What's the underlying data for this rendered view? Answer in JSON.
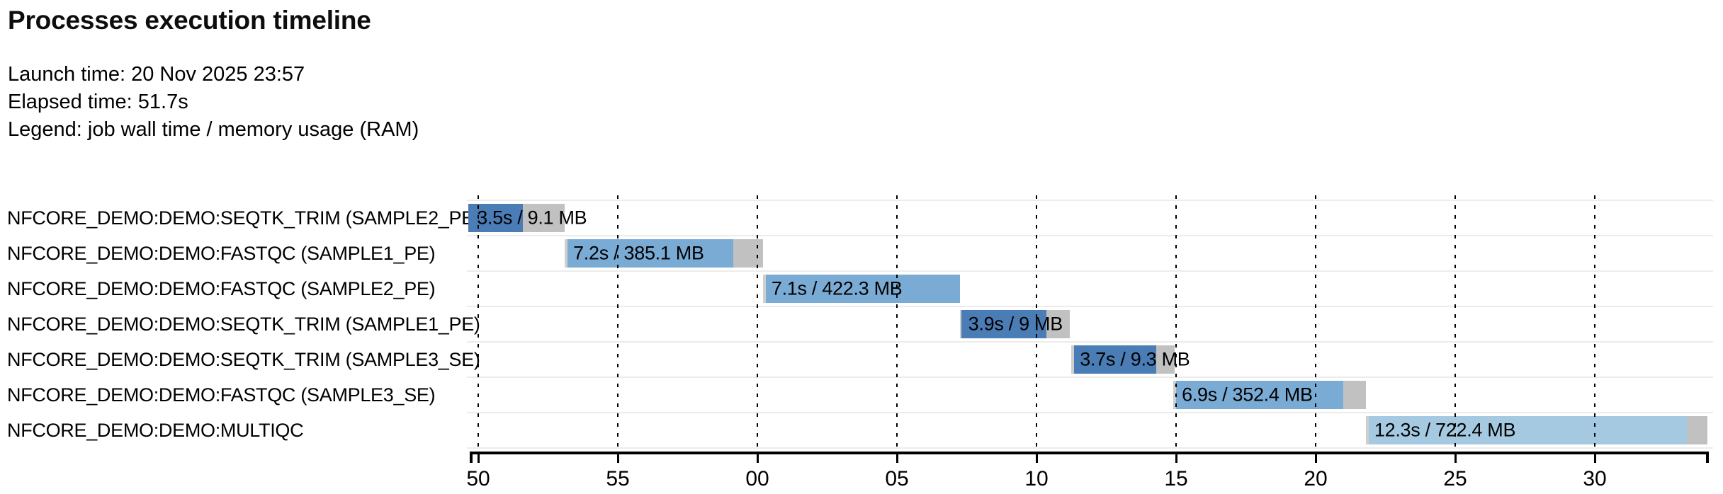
{
  "header": {
    "title": "Processes execution timeline",
    "launch_line": "Launch time: 20 Nov 2025 23:57",
    "elapsed_line": "Elapsed time: 51.7s",
    "legend_line": "Legend: job wall time / memory usage (RAM)"
  },
  "colors": {
    "seqtk_trim_blue": "#4a7cb5",
    "fastqc_blue": "#7aabd4",
    "multiqc_blue": "#a6c9e2",
    "bar_lead_gray": "#cfcfcf",
    "bar_tail_gray": "#c1c1c1",
    "text": "#000000",
    "row_separator": "#ececec",
    "axis": "#000000"
  },
  "chart_data": {
    "type": "timeline",
    "title": "Processes execution timeline",
    "launch_time": "20 Nov 2025 23:57",
    "elapsed_time": "51.7s",
    "legend": "job wall time / memory usage (RAM)",
    "axis": {
      "unit": "seconds within minute (00 = 23:58:00)",
      "range_s": [
        49.75,
        94.05
      ],
      "tick_interval_s": 5,
      "grid": "dashed-vertical",
      "ticks": [
        {
          "t": 50,
          "label": "50"
        },
        {
          "t": 55,
          "label": "55"
        },
        {
          "t": 60,
          "label": "00"
        },
        {
          "t": 65,
          "label": "05"
        },
        {
          "t": 70,
          "label": "10"
        },
        {
          "t": 75,
          "label": "15"
        },
        {
          "t": 80,
          "label": "20"
        },
        {
          "t": 85,
          "label": "25"
        },
        {
          "t": 90,
          "label": "30"
        }
      ]
    },
    "tasks": [
      {
        "name": "NFCORE_DEMO:DEMO:SEQTK_TRIM (SAMPLE2_PE)",
        "label": "3.5s / 9.1 MB",
        "start_s": 49.65,
        "lead_s": 0.0,
        "run_s": 1.95,
        "tail_s": 1.5,
        "color": "#4a7cb5"
      },
      {
        "name": "NFCORE_DEMO:DEMO:FASTQC (SAMPLE1_PE)",
        "label": "7.2s / 385.1 MB",
        "start_s": 53.1,
        "lead_s": 0.1,
        "run_s": 5.95,
        "tail_s": 1.05,
        "color": "#7aabd4"
      },
      {
        "name": "NFCORE_DEMO:DEMO:FASTQC (SAMPLE2_PE)",
        "label": "7.1s / 422.3 MB",
        "start_s": 60.2,
        "lead_s": 0.1,
        "run_s": 6.95,
        "tail_s": 0.0,
        "color": "#7aabd4"
      },
      {
        "name": "NFCORE_DEMO:DEMO:SEQTK_TRIM (SAMPLE1_PE)",
        "label": "3.9s / 9 MB",
        "start_s": 67.25,
        "lead_s": 0.05,
        "run_s": 3.05,
        "tail_s": 0.85,
        "color": "#4a7cb5"
      },
      {
        "name": "NFCORE_DEMO:DEMO:SEQTK_TRIM (SAMPLE3_SE)",
        "label": "3.7s / 9.3 MB",
        "start_s": 71.25,
        "lead_s": 0.1,
        "run_s": 2.95,
        "tail_s": 0.65,
        "color": "#4a7cb5"
      },
      {
        "name": "NFCORE_DEMO:DEMO:FASTQC (SAMPLE3_SE)",
        "label": "6.9s / 352.4 MB",
        "start_s": 74.9,
        "lead_s": 0.1,
        "run_s": 6.0,
        "tail_s": 0.8,
        "color": "#7aabd4"
      },
      {
        "name": "NFCORE_DEMO:DEMO:MULTIQC",
        "label": "12.3s / 722.4 MB",
        "start_s": 81.8,
        "lead_s": 0.1,
        "run_s": 11.4,
        "tail_s": 0.75,
        "color": "#a6c9e2"
      }
    ]
  }
}
